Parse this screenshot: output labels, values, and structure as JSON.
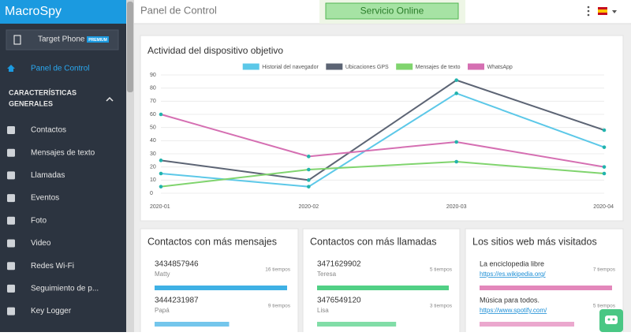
{
  "sidebar": {
    "brand": "MacroSpy",
    "device": "Target Phone",
    "badge": "PREMIUM",
    "active": "Panel de Control",
    "section": [
      "CARACTERÍSTICAS",
      "GENERALES"
    ],
    "items": [
      "Contactos",
      "Mensajes de texto",
      "Llamadas",
      "Eventos",
      "Foto",
      "Video",
      "Redes Wi-Fi",
      "Seguimiento de p...",
      "Key Logger"
    ]
  },
  "header": {
    "title": "Panel de Control",
    "status": "Servicio Online"
  },
  "chart_data": {
    "type": "line",
    "title": "Actividad del dispositivo objetivo",
    "categories": [
      "2020-01",
      "2020-02",
      "2020-03",
      "2020-04"
    ],
    "series": [
      {
        "name": "Historial del navegador",
        "color": "#5cc8e8",
        "values": [
          15,
          5,
          76,
          35
        ]
      },
      {
        "name": "Ubicaciones GPS",
        "color": "#5c6474",
        "values": [
          25,
          10,
          86,
          48
        ]
      },
      {
        "name": "Mensajes de texto",
        "color": "#80d46e",
        "values": [
          5,
          18,
          24,
          15
        ]
      },
      {
        "name": "WhatsApp",
        "color": "#d56fb2",
        "values": [
          60,
          28,
          39,
          20
        ]
      }
    ],
    "marker_color": "#22b3ad",
    "ylim": [
      0,
      90
    ],
    "yticks": [
      0,
      10,
      20,
      30,
      40,
      50,
      60,
      70,
      80,
      90
    ],
    "grid": true
  },
  "cards": [
    {
      "title": "Contactos con más mensajes",
      "color": "#2aa8e2",
      "items": [
        {
          "primary": "3434857946",
          "secondary": "Matty",
          "times": {
            "value": 16,
            "label": "16 tiempos"
          }
        },
        {
          "primary": "3444231987",
          "secondary": "Papá",
          "times": {
            "value": 9,
            "label": "9 tiempos"
          }
        }
      ]
    },
    {
      "title": "Contactos con más llamadas",
      "color": "#3ecb78",
      "items": [
        {
          "primary": "3471629902",
          "secondary": "Teresa",
          "times": {
            "value": 5,
            "label": "5 tiempos"
          }
        },
        {
          "primary": "3476549120",
          "secondary": "Lisa",
          "times": {
            "value": 3,
            "label": "3 tiempos"
          }
        }
      ]
    },
    {
      "title": "Los sitios web más visitados",
      "color": "#e07ab4",
      "items": [
        {
          "primary": "La enciclopedia libre",
          "secondary": "https://es.wikipedia.org/",
          "times": {
            "value": 7,
            "label": "7 tiempos"
          }
        },
        {
          "primary": "Música para todos.",
          "secondary": "https://www.spotify.com/",
          "times": {
            "value": 5,
            "label": "5 tiempos"
          }
        }
      ]
    }
  ]
}
